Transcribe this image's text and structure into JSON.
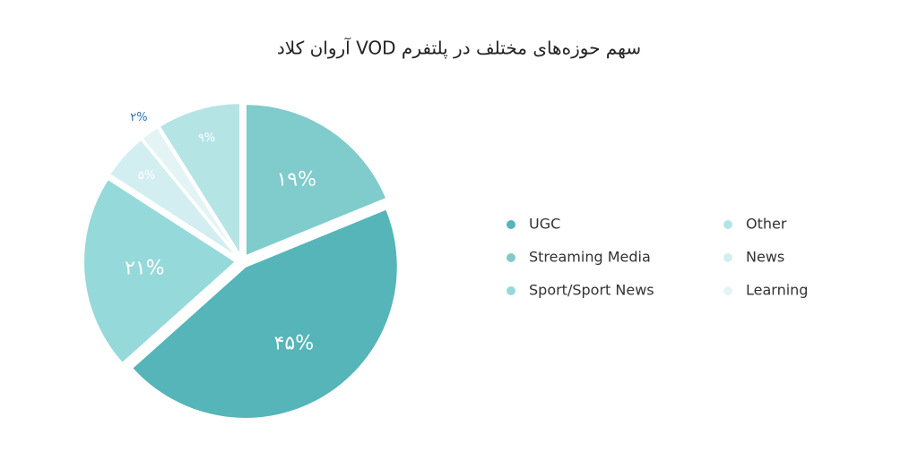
{
  "chart_data": {
    "type": "pie",
    "title": "سهم حوزه‌های مختلف در پلتفرم VOD آروان کلاد",
    "categories": [
      "UGC",
      "Streaming Media",
      "Sport/Sport News",
      "Other",
      "News",
      "Learning"
    ],
    "values": [
      45,
      19,
      21,
      9,
      5,
      2
    ],
    "value_labels": [
      "۴۵%",
      "۱۹%",
      "۲۱%",
      "۹%",
      "۵%",
      "۲%"
    ],
    "colors": [
      "#55b5b8",
      "#80cbcc",
      "#96d9da",
      "#b5e4e5",
      "#d3eef0",
      "#e4f4f5"
    ],
    "legend": "right"
  }
}
